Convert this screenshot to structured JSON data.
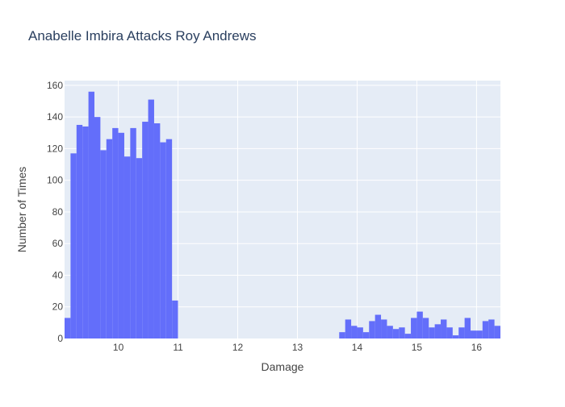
{
  "colors": {
    "plot_background": "#e5ecf6",
    "bar": "#636efa",
    "grid": "#ffffff",
    "text": "#2a3f5f",
    "tick_text": "#444444"
  },
  "chart_data": {
    "type": "bar",
    "title": "Anabelle Imbira Attacks Roy Andrews",
    "xlabel": "Damage",
    "ylabel": "Number of Times",
    "xlim": [
      9.1,
      16.4
    ],
    "ylim": [
      0,
      163
    ],
    "grid": true,
    "legend": "none",
    "xticks": [
      10,
      11,
      12,
      13,
      14,
      15,
      16
    ],
    "yticks": [
      0,
      20,
      40,
      60,
      80,
      100,
      120,
      140,
      160
    ],
    "bin_width": 0.1,
    "x": [
      9.15,
      9.25,
      9.35,
      9.45,
      9.55,
      9.65,
      9.75,
      9.85,
      9.95,
      10.05,
      10.15,
      10.25,
      10.35,
      10.45,
      10.55,
      10.65,
      10.75,
      10.85,
      10.95,
      13.75,
      13.85,
      13.95,
      14.05,
      14.15,
      14.25,
      14.35,
      14.45,
      14.55,
      14.65,
      14.75,
      14.85,
      14.95,
      15.05,
      15.15,
      15.25,
      15.35,
      15.45,
      15.55,
      15.65,
      15.75,
      15.85,
      15.95,
      16.05,
      16.15,
      16.25,
      16.35
    ],
    "values": [
      13,
      117,
      135,
      134,
      156,
      140,
      119,
      126,
      133,
      130,
      115,
      133,
      114,
      137,
      151,
      136,
      124,
      126,
      24,
      4,
      12,
      8,
      7,
      4,
      11,
      15,
      12,
      8,
      6,
      7,
      3,
      13,
      17,
      13,
      7,
      9,
      12,
      7,
      2,
      7,
      13,
      5,
      5,
      11,
      12,
      8
    ]
  }
}
